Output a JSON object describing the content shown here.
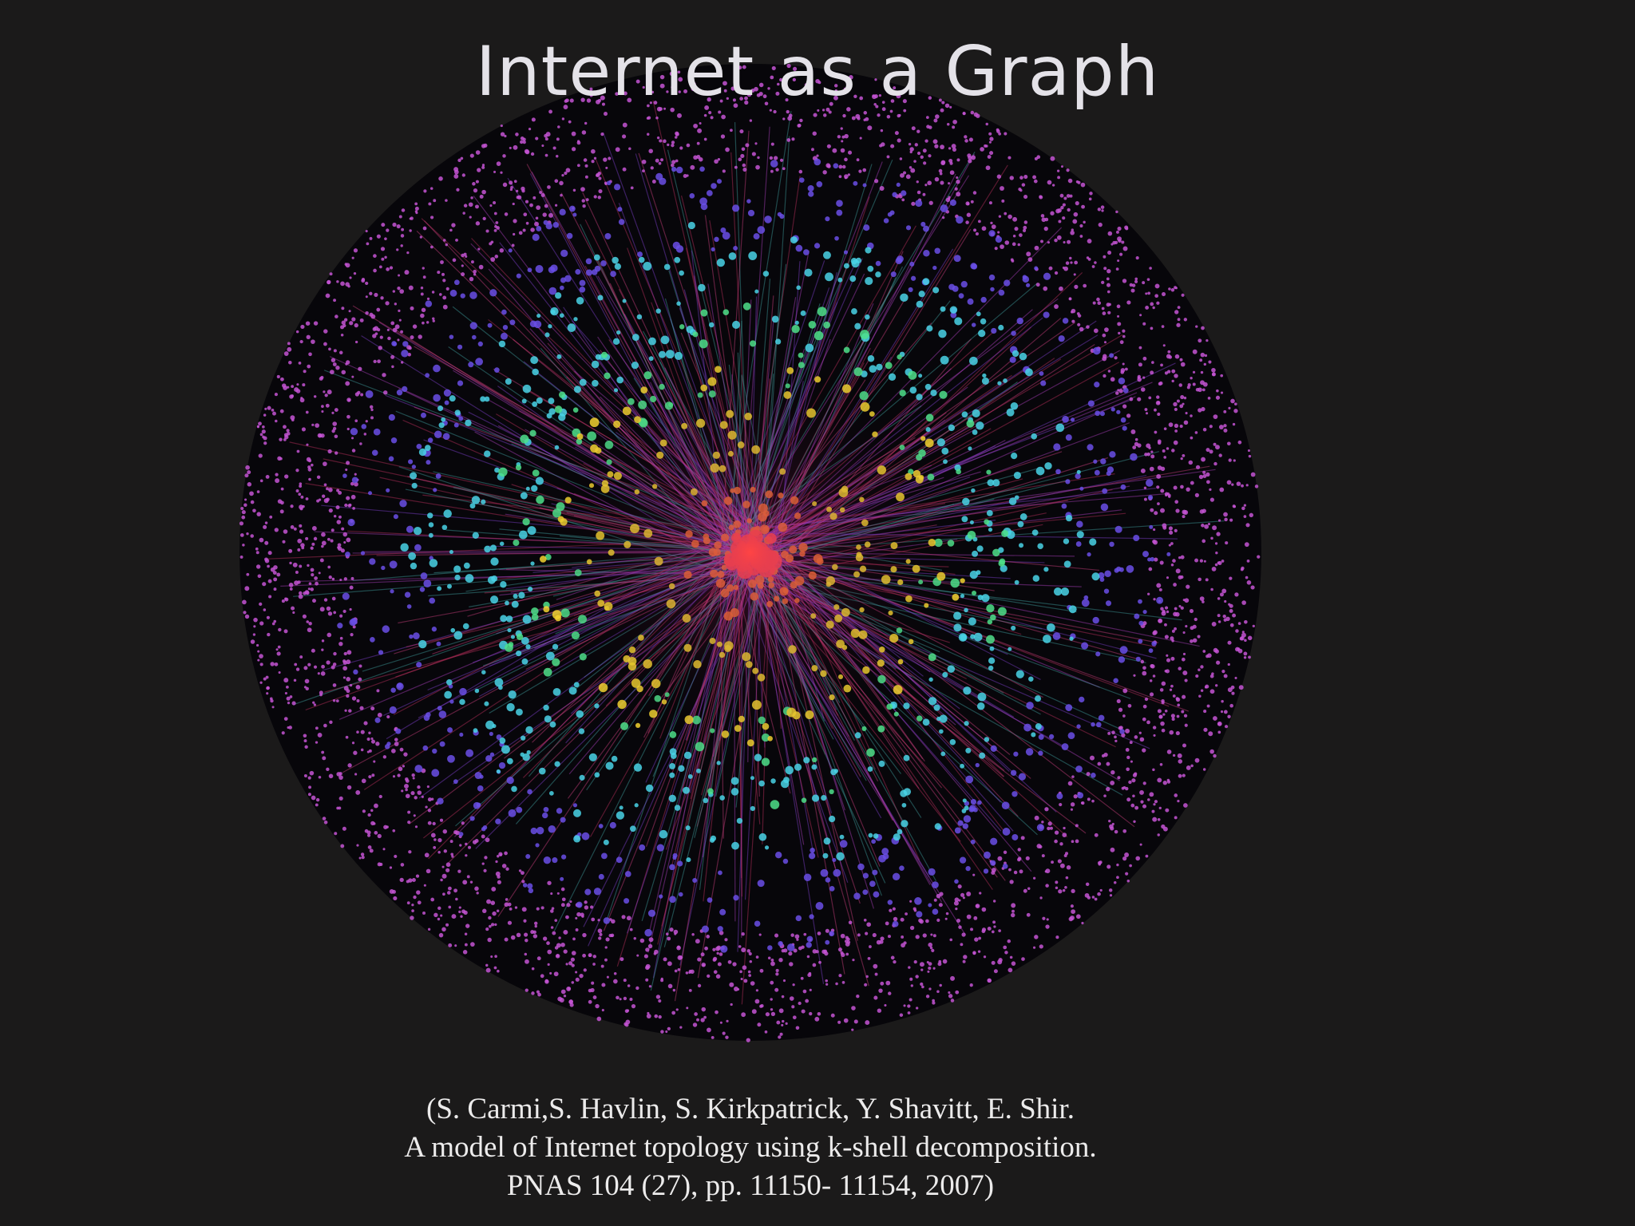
{
  "title": "Internet as a Graph",
  "citation": [
    "(S. Carmi,S. Havlin, S. Kirkpatrick, Y. Shavitt, E. Shir.",
    "A model of Internet topology using k-shell decomposition.",
    "PNAS 104 (27), pp. 11150- 11154, 2007)"
  ]
}
